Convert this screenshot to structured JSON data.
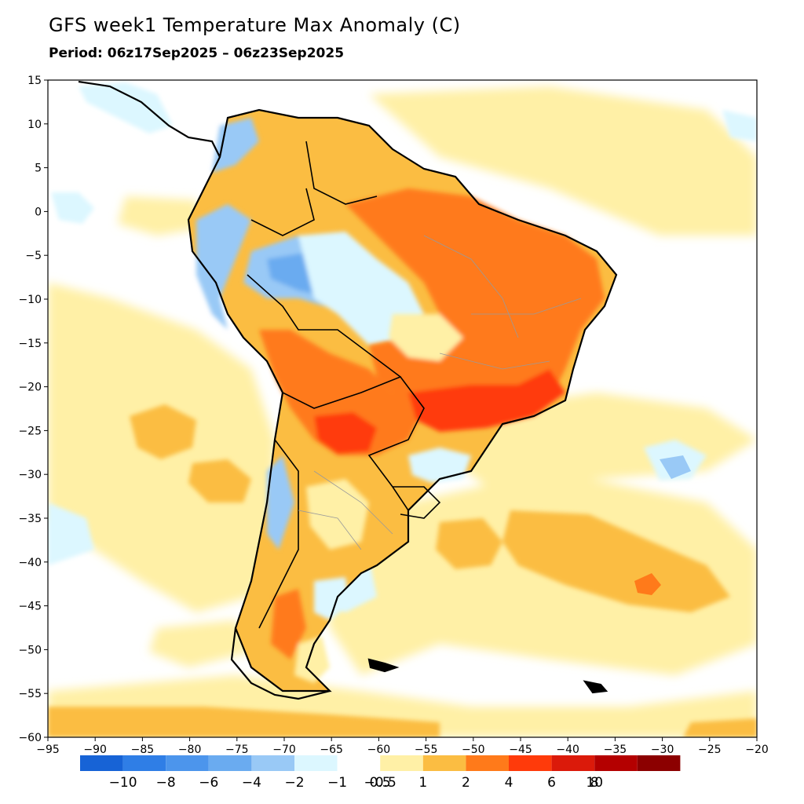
{
  "header": {
    "title": "GFS week1 Temperature Max Anomaly (C)",
    "period": "Period: 06z17Sep2025 – 06z23Sep2025"
  },
  "axes": {
    "lon_ticks": [
      "−95",
      "−90",
      "−85",
      "−80",
      "−75",
      "−70",
      "−65",
      "−60",
      "−55",
      "−50",
      "−45",
      "−40",
      "−35",
      "−30",
      "−25",
      "−20"
    ],
    "lat_ticks": [
      "15",
      "10",
      "5",
      "0",
      "−5",
      "−10",
      "−15",
      "−20",
      "−25",
      "−30",
      "−35",
      "−40",
      "−45",
      "−50",
      "−55",
      "−60"
    ],
    "lon_range": [
      -95,
      -20
    ],
    "lat_range": [
      -60,
      15
    ]
  },
  "colorbar": {
    "colors": [
      "#1763d6",
      "#2f7ee6",
      "#4c95ec",
      "#6aabf0",
      "#99c9f6",
      "#dcf7ff",
      "#ffffff",
      "#fff0a6",
      "#fbbd42",
      "#ff7a1a",
      "#ff3a0a",
      "#db1a0a",
      "#b40000",
      "#8c0000"
    ],
    "labels": [
      "−10",
      "−8",
      "−6",
      "−4",
      "−2",
      "−1",
      "−0.5",
      "0.5",
      "1",
      "2",
      "4",
      "6",
      "8",
      "10"
    ]
  }
}
